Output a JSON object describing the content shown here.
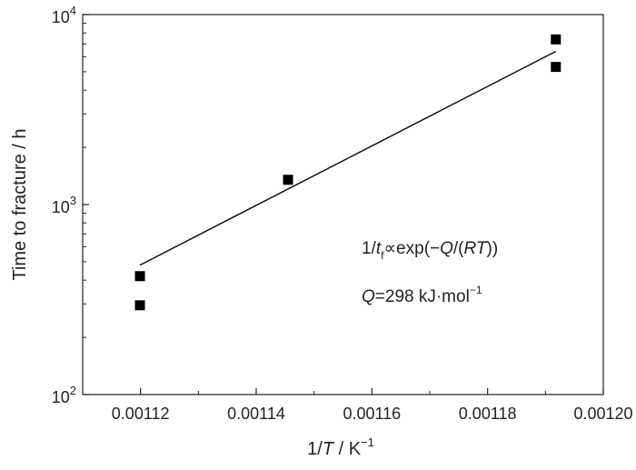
{
  "chart_data": {
    "type": "scatter",
    "xlabel": {
      "pre": "1/",
      "var": "T",
      "post": " / K",
      "sup": "−1"
    },
    "ylabel": "Time to fracture / h",
    "xlim": [
      0.00111,
      0.0012
    ],
    "ylim": [
      100,
      10000
    ],
    "yscale": "log",
    "x_ticks": [
      0.00112,
      0.00114,
      0.00116,
      0.00118,
      0.0012
    ],
    "x_tick_labels": [
      "0.00112",
      "0.00114",
      "0.00116",
      "0.00118",
      "0.00120"
    ],
    "y_ticks": [
      {
        "value": 100,
        "base": "10",
        "exp": "2"
      },
      {
        "value": 1000,
        "base": "10",
        "exp": "3"
      },
      {
        "value": 10000,
        "base": "10",
        "exp": "4"
      }
    ],
    "series": [
      {
        "marker": "square",
        "points": [
          {
            "x": 0.0011199,
            "y": 420
          },
          {
            "x": 0.0011199,
            "y": 295
          },
          {
            "x": 0.0011455,
            "y": 1350
          },
          {
            "x": 0.0011918,
            "y": 7400
          },
          {
            "x": 0.0011918,
            "y": 5300
          }
        ]
      }
    ],
    "fit_line": {
      "x": [
        0.0011199,
        0.0011918
      ],
      "y": [
        480,
        6400
      ]
    },
    "annotations": {
      "equation": {
        "pre": "1/",
        "var": "t",
        "sub": "f",
        "mid": "∝exp(−",
        "q": "Q",
        "mid2": "/(",
        "rt": "RT",
        "post": "))"
      },
      "activation": {
        "q": "Q",
        "value": "=298 kJ·mol",
        "sup": "−1"
      }
    }
  }
}
